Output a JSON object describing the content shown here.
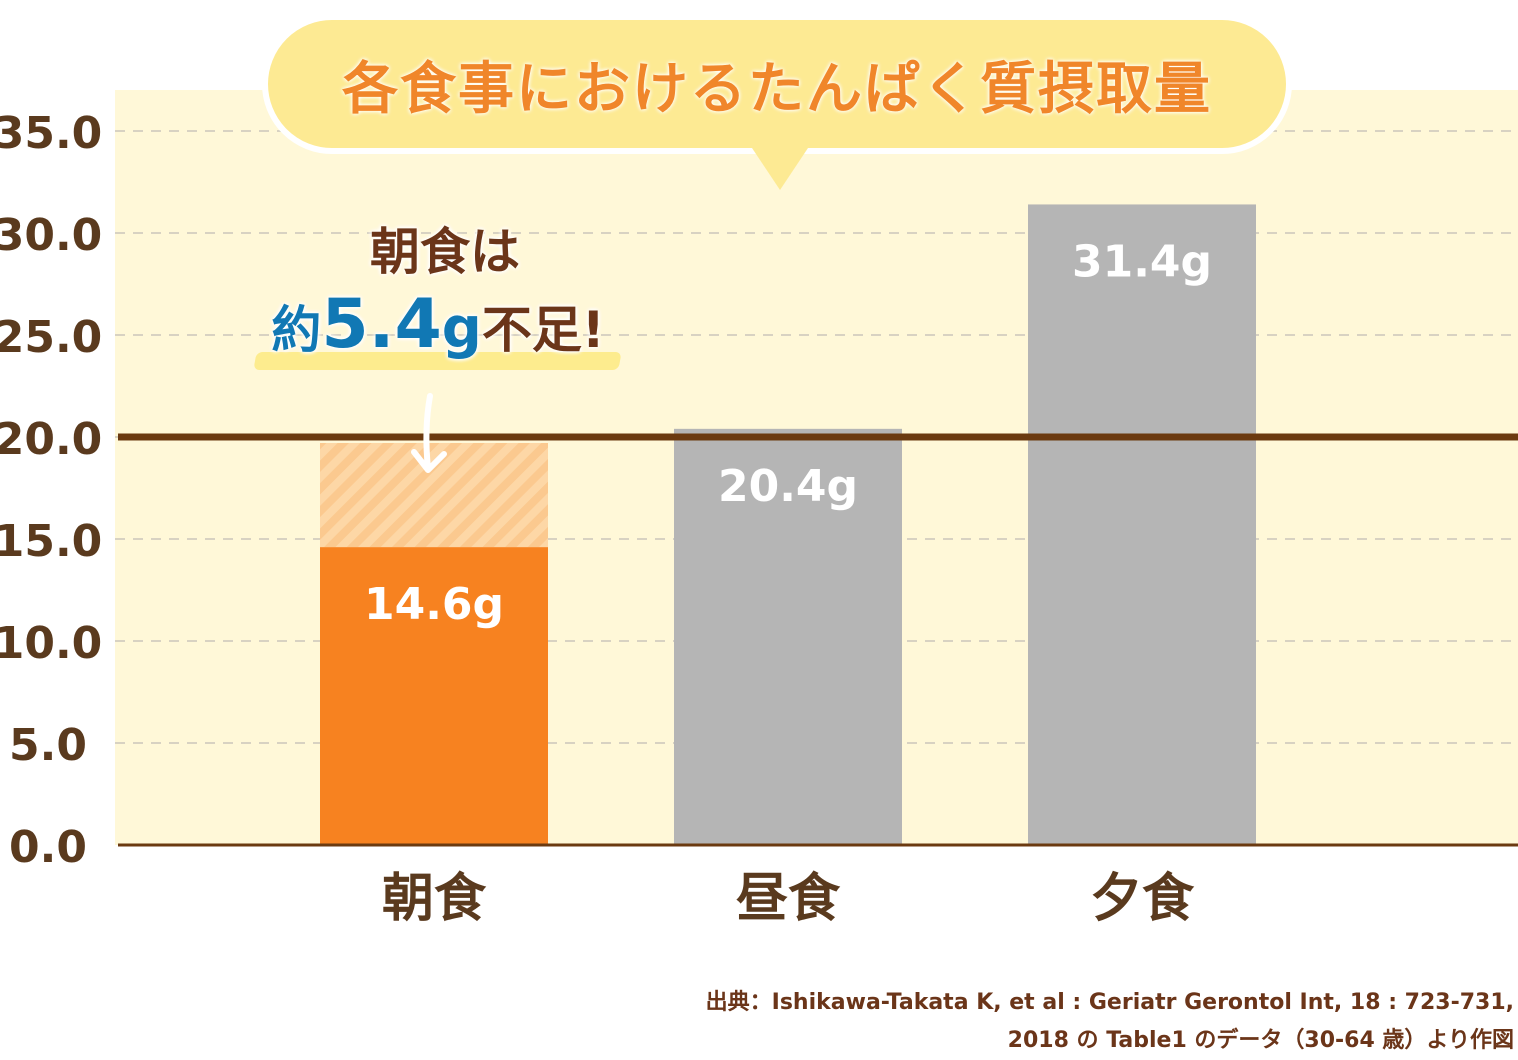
{
  "chart_data": {
    "type": "bar",
    "title": "各食事におけるたんぱく質摂取量",
    "categories": [
      "朝食",
      "昼食",
      "夕食"
    ],
    "values": [
      14.6,
      20.4,
      31.4
    ],
    "data_labels": [
      "14.6g",
      "20.4g",
      "31.4g"
    ],
    "ylim": [
      0,
      35
    ],
    "yticks": [
      "0.0",
      "5.0",
      "10.0",
      "15.0",
      "20.0",
      "25.0",
      "30.0",
      "35.0"
    ],
    "reference_line": 20.0,
    "shortfall": {
      "category": "朝食",
      "from": 14.6,
      "to": 20.0
    },
    "grid": true,
    "colors": {
      "highlight": "#f78220",
      "bars": "#b5b5b5",
      "shortfall": "#fbc98f",
      "reference": "#6b3a10",
      "background": "#fff8d8"
    }
  },
  "annotation": {
    "line1": "朝食は",
    "prefix": "約",
    "value": "5.4",
    "unit": "g",
    "suffix": "不足!"
  },
  "source": {
    "line1": "出典：Ishikawa-Takata K, et al : Geriatr Gerontol Int, 18 : 723-731,",
    "line2": "2018 の Table1 のデータ（30-64 歳）より作図"
  }
}
